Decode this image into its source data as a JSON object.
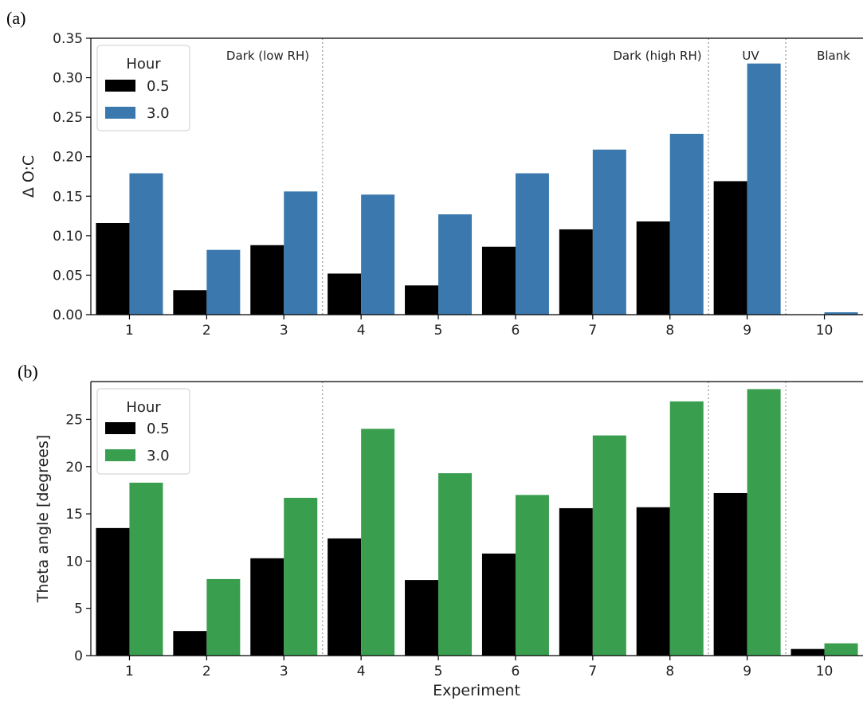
{
  "chart_data": [
    {
      "panel_label": "(a)",
      "type": "bar",
      "categories": [
        "1",
        "2",
        "3",
        "4",
        "5",
        "6",
        "7",
        "8",
        "9",
        "10"
      ],
      "xlabel": "",
      "ylabel": "Δ O:C",
      "ylim": [
        0,
        0.35
      ],
      "yticks": [
        "0.00",
        "0.05",
        "0.10",
        "0.15",
        "0.20",
        "0.25",
        "0.30",
        "0.35"
      ],
      "yticks_values": [
        0,
        0.05,
        0.1,
        0.15,
        0.2,
        0.25,
        0.3,
        0.35
      ],
      "legend": {
        "title": "Hour",
        "position": "top-left"
      },
      "series": [
        {
          "name": "0.5",
          "color": "#000000",
          "values": [
            0.116,
            0.031,
            0.088,
            0.052,
            0.037,
            0.086,
            0.108,
            0.118,
            0.169,
            0.0
          ]
        },
        {
          "name": "3.0",
          "color": "#3a78ad",
          "values": [
            0.179,
            0.082,
            0.156,
            0.152,
            0.127,
            0.179,
            0.209,
            0.229,
            0.318,
            0.003
          ]
        }
      ],
      "region_dividers_after": [
        3,
        8,
        9
      ],
      "regions": [
        {
          "label": "Dark (low RH)"
        },
        {
          "label": "Dark (high RH)"
        },
        {
          "label": "UV"
        },
        {
          "label": "Blank"
        }
      ]
    },
    {
      "panel_label": "(b)",
      "type": "bar",
      "categories": [
        "1",
        "2",
        "3",
        "4",
        "5",
        "6",
        "7",
        "8",
        "9",
        "10"
      ],
      "xlabel": "Experiment",
      "ylabel": "Theta angle [degrees]",
      "ylim": [
        0,
        29.0
      ],
      "yticks": [
        "0",
        "5",
        "10",
        "15",
        "20",
        "25"
      ],
      "yticks_values": [
        0,
        5,
        10,
        15,
        20,
        25
      ],
      "legend": {
        "title": "Hour",
        "position": "top-left"
      },
      "series": [
        {
          "name": "0.5",
          "color": "#000000",
          "values": [
            13.5,
            2.6,
            10.3,
            12.4,
            8.0,
            10.8,
            15.6,
            15.7,
            17.2,
            0.7
          ]
        },
        {
          "name": "3.0",
          "color": "#3a9e4f",
          "values": [
            18.3,
            8.1,
            16.7,
            24.0,
            19.3,
            17.0,
            23.3,
            26.9,
            28.2,
            1.3
          ]
        }
      ],
      "region_dividers_after": [
        3,
        8,
        9
      ],
      "regions": []
    }
  ]
}
